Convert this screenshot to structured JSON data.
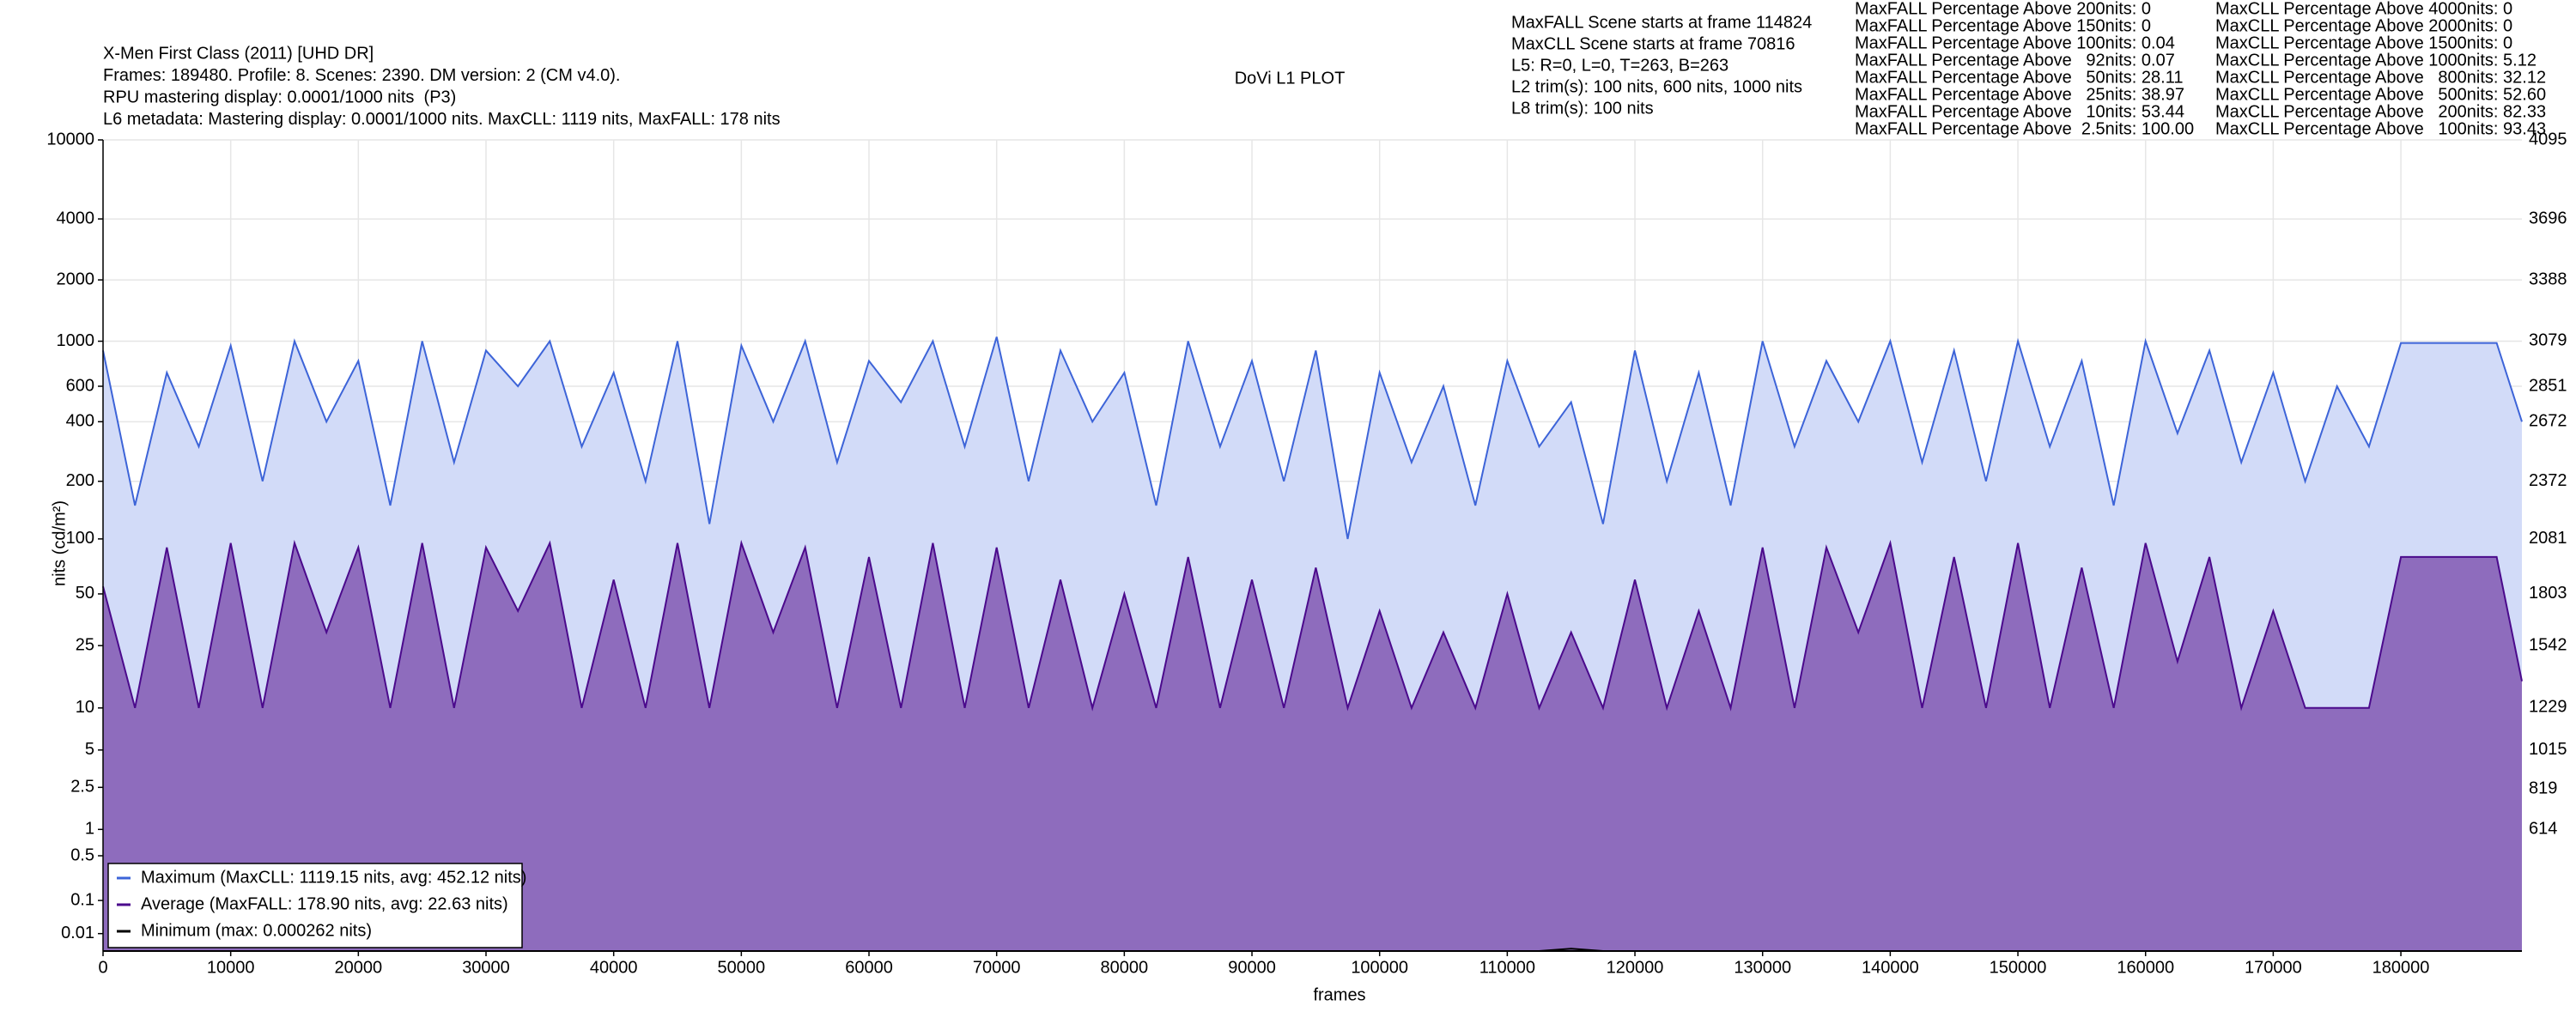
{
  "chart_data": {
    "type": "area",
    "title": "DoVi L1 PLOT",
    "info_left": [
      "X-Men First Class (2011) [UHD DR]",
      "Frames: 189480. Profile: 8. Scenes: 2390. DM version: 2 (CM v4.0).",
      "RPU mastering display: 0.0001/1000 nits  (P3)",
      "L6 metadata: Mastering display: 0.0001/1000 nits. MaxCLL: 1119 nits, MaxFALL: 178 nits"
    ],
    "info_mid": [
      "MaxFALL Scene starts at frame 114824",
      "MaxCLL Scene starts at frame 70816",
      "L5: R=0, L=0, T=263, B=263",
      "L2 trim(s): 100 nits, 600 nits, 1000 nits",
      "L8 trim(s): 100 nits"
    ],
    "maxfall_stats": [
      "MaxFALL Percentage Above 200nits: 0",
      "MaxFALL Percentage Above 150nits: 0",
      "MaxFALL Percentage Above 100nits: 0.04",
      "MaxFALL Percentage Above   92nits: 0.07",
      "MaxFALL Percentage Above   50nits: 28.11",
      "MaxFALL Percentage Above   25nits: 38.97",
      "MaxFALL Percentage Above   10nits: 53.44",
      "MaxFALL Percentage Above  2.5nits: 100.00"
    ],
    "maxcll_stats": [
      "MaxCLL Percentage Above 4000nits: 0",
      "MaxCLL Percentage Above 2000nits: 0",
      "MaxCLL Percentage Above 1500nits: 0",
      "MaxCLL Percentage Above 1000nits: 5.12",
      "MaxCLL Percentage Above   800nits: 32.12",
      "MaxCLL Percentage Above   500nits: 52.60",
      "MaxCLL Percentage Above   200nits: 82.33",
      "MaxCLL Percentage Above   100nits: 93.43"
    ],
    "xlabel": "frames",
    "ylabel": "nits (cd/m²)",
    "yscale": "pq",
    "grid": true,
    "legend": "lower left",
    "xlim": [
      0,
      189480
    ],
    "xticks": [
      0,
      10000,
      20000,
      30000,
      40000,
      50000,
      60000,
      70000,
      80000,
      90000,
      100000,
      110000,
      120000,
      130000,
      140000,
      150000,
      160000,
      170000,
      180000
    ],
    "ylim": [
      0,
      10000
    ],
    "yticks": [
      0.01,
      0.1,
      0.5,
      1,
      2.5,
      5,
      10,
      25,
      50,
      100,
      200,
      400,
      600,
      1000,
      2000,
      4000,
      10000
    ],
    "y2lim": [
      0,
      4095
    ],
    "y2ticks": [
      614,
      819,
      1015,
      1229,
      1542,
      1803,
      2081,
      2372,
      2672,
      2851,
      3079,
      3388,
      3696,
      4095
    ],
    "x": [
      0,
      2500,
      5000,
      7500,
      10000,
      12500,
      15000,
      17500,
      20000,
      22500,
      25000,
      27500,
      30000,
      32500,
      35000,
      37500,
      40000,
      42500,
      45000,
      47500,
      50000,
      52500,
      55000,
      57500,
      60000,
      62500,
      65000,
      67500,
      70000,
      72500,
      75000,
      77500,
      80000,
      82500,
      85000,
      87500,
      90000,
      92500,
      95000,
      97500,
      100000,
      102500,
      105000,
      107500,
      110000,
      112500,
      115000,
      117500,
      120000,
      122500,
      125000,
      127500,
      130000,
      132500,
      135000,
      137500,
      140000,
      142500,
      145000,
      147500,
      150000,
      152500,
      155000,
      157500,
      160000,
      162500,
      165000,
      167500,
      170000,
      172500,
      175000,
      177500,
      180000,
      182500,
      185000,
      187500,
      189480
    ],
    "series": [
      {
        "name": "Maximum (MaxCLL: 1119.15 nits, avg: 452.12 nits)",
        "color": "#3d64d8",
        "fill": "#d2dbf8",
        "values": [
          900,
          150,
          700,
          300,
          950,
          200,
          1000,
          400,
          800,
          150,
          1000,
          250,
          900,
          600,
          1000,
          300,
          700,
          200,
          1000,
          120,
          950,
          400,
          1000,
          250,
          800,
          500,
          1000,
          300,
          1050,
          200,
          900,
          400,
          700,
          150,
          1000,
          300,
          800,
          200,
          900,
          100,
          700,
          250,
          600,
          150,
          800,
          300,
          500,
          120,
          900,
          200,
          700,
          150,
          1000,
          300,
          800,
          400,
          1000,
          250,
          900,
          200,
          1000,
          300,
          800,
          150,
          1000,
          350,
          900,
          250,
          700,
          200,
          600,
          300,
          980,
          980,
          980,
          980,
          400
        ]
      },
      {
        "name": "Average (MaxFALL: 178.90 nits, avg: 22.63 nits)",
        "color": "#4b0a8c",
        "fill": "#8e6cbd",
        "values": [
          55,
          10,
          90,
          10,
          95,
          10,
          95,
          30,
          90,
          10,
          95,
          10,
          90,
          40,
          95,
          10,
          60,
          10,
          95,
          10,
          95,
          30,
          90,
          10,
          80,
          10,
          95,
          10,
          90,
          10,
          60,
          10,
          50,
          10,
          80,
          10,
          60,
          10,
          70,
          10,
          40,
          10,
          30,
          10,
          50,
          10,
          30,
          10,
          60,
          10,
          40,
          10,
          90,
          10,
          90,
          30,
          95,
          10,
          80,
          10,
          95,
          10,
          70,
          10,
          95,
          20,
          80,
          10,
          40,
          10,
          10,
          10,
          80,
          80,
          80,
          80,
          15
        ]
      },
      {
        "name": "Minimum (max: 0.000262 nits)",
        "color": "#000000",
        "fill": null,
        "values": [
          0,
          0,
          0,
          0,
          0,
          0,
          0,
          0,
          0,
          0,
          0,
          0,
          0,
          0,
          0,
          0,
          0,
          0,
          0,
          0,
          0,
          0,
          0,
          0,
          0,
          0,
          0,
          0,
          0,
          0,
          0,
          0,
          0,
          0,
          0,
          0,
          0,
          0,
          0,
          0,
          0,
          0,
          0,
          0,
          0,
          0,
          0.000262,
          0,
          0,
          0,
          0,
          0,
          0,
          0,
          0,
          0,
          0,
          0,
          0,
          0,
          0,
          0,
          0,
          0,
          0,
          0,
          0,
          0,
          0,
          0,
          0,
          0,
          0,
          0,
          0,
          0,
          0
        ]
      }
    ]
  }
}
